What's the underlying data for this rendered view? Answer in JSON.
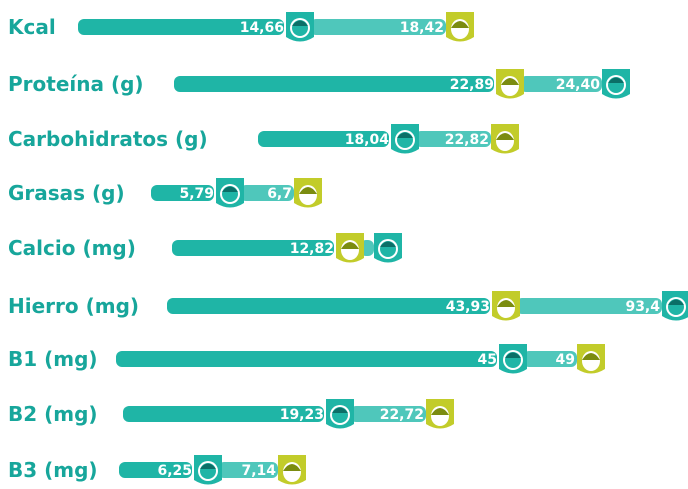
{
  "colors": {
    "male": "#1fb5a6",
    "female": "#c2cc2a",
    "label": "#17a69b",
    "text": "#ffffff"
  },
  "chart_data": {
    "type": "bar",
    "categories": [
      "Kcal",
      "Proteína (g)",
      "Carbohidratos (g)",
      "Grasas (g)",
      "Calcio (mg)",
      "Hierro (mg)",
      "B1 (mg)",
      "B2 (mg)",
      "B3 (mg)"
    ],
    "rows": [
      {
        "category": "Kcal",
        "first": {
          "group": "male",
          "value": 14.66,
          "text": "14,66"
        },
        "second": {
          "group": "female",
          "value": 18.42,
          "text": "18,42"
        }
      },
      {
        "category": "Proteína (g)",
        "first": {
          "group": "female",
          "value": 22.89,
          "text": "22,89"
        },
        "second": {
          "group": "male",
          "value": 24.4,
          "text": "24,40"
        }
      },
      {
        "category": "Carbohidratos (g)",
        "first": {
          "group": "male",
          "value": 18.04,
          "text": "18,04"
        },
        "second": {
          "group": "female",
          "value": 22.82,
          "text": "22,82"
        }
      },
      {
        "category": "Grasas (g)",
        "first": {
          "group": "male",
          "value": 5.79,
          "text": "5,79"
        },
        "second": {
          "group": "female",
          "value": 6.7,
          "text": "6,7"
        }
      },
      {
        "category": "Calcio (mg)",
        "first": {
          "group": "female",
          "value": 12.82,
          "text": "12,82"
        },
        "second": {
          "group": "male",
          "value": 12.82,
          "text": ""
        }
      },
      {
        "category": "Hierro (mg)",
        "first": {
          "group": "female",
          "value": 43.93,
          "text": "43,93"
        },
        "second": {
          "group": "male",
          "value": 93.4,
          "text": "93,4"
        }
      },
      {
        "category": "B1 (mg)",
        "first": {
          "group": "male",
          "value": 45,
          "text": "45"
        },
        "second": {
          "group": "female",
          "value": 49,
          "text": "49"
        }
      },
      {
        "category": "B2 (mg)",
        "first": {
          "group": "male",
          "value": 19.23,
          "text": "19,23"
        },
        "second": {
          "group": "female",
          "value": 22.72,
          "text": "22,72"
        }
      },
      {
        "category": "B3 (mg)",
        "first": {
          "group": "male",
          "value": 6.25,
          "text": "6,25"
        },
        "second": {
          "group": "female",
          "value": 7.14,
          "text": "7,14"
        }
      }
    ]
  }
}
